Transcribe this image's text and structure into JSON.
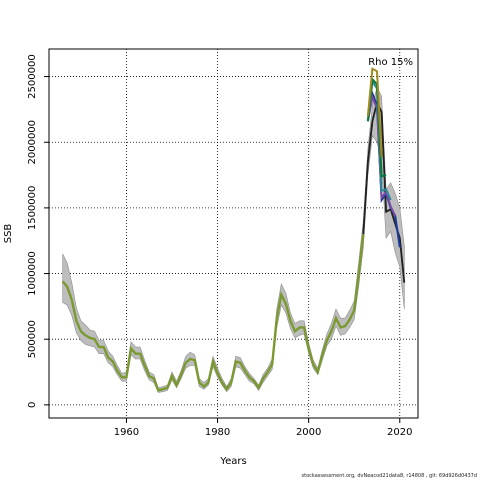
{
  "chart_data": {
    "type": "line",
    "xlabel": "Years",
    "ylabel": "SSB",
    "annotation": "Rho 15%",
    "xlim": [
      1943,
      2024
    ],
    "ylim": [
      -100000,
      2710000
    ],
    "x_ticks": [
      1960,
      1980,
      2000,
      2020
    ],
    "y_ticks": [
      0,
      500000,
      1000000,
      1500000,
      2000000,
      2500000
    ],
    "grid": true,
    "grid_style": "dotted",
    "colors": {
      "band": "#bdbdbd",
      "band_edge": "#8c8c8c",
      "base": "#222222",
      "peels": [
        "#1a3a9c",
        "#7a4aa6",
        "#2a8a9a",
        "#0a7a3a",
        "#a08a20"
      ],
      "history": "#7a9a30"
    },
    "series": [
      {
        "role": "base",
        "x": [
          1946,
          1947,
          1948,
          1949,
          1950,
          1951,
          1952,
          1953,
          1954,
          1955,
          1956,
          1957,
          1958,
          1959,
          1960,
          1961,
          1962,
          1963,
          1964,
          1965,
          1966,
          1967,
          1968,
          1969,
          1970,
          1971,
          1972,
          1973,
          1974,
          1975,
          1976,
          1977,
          1978,
          1979,
          1980,
          1981,
          1982,
          1983,
          1984,
          1985,
          1986,
          1987,
          1988,
          1989,
          1990,
          1991,
          1992,
          1993,
          1994,
          1995,
          1996,
          1997,
          1998,
          1999,
          2000,
          2001,
          2002,
          2003,
          2004,
          2005,
          2006,
          2007,
          2008,
          2009,
          2010,
          2011,
          2012,
          2013,
          2014,
          2015,
          2016,
          2017,
          2018,
          2019,
          2020,
          2021
        ],
        "y": [
          940000,
          900000,
          800000,
          640000,
          560000,
          530000,
          510000,
          500000,
          440000,
          440000,
          360000,
          330000,
          260000,
          210000,
          210000,
          430000,
          390000,
          390000,
          300000,
          220000,
          200000,
          110000,
          120000,
          130000,
          220000,
          150000,
          230000,
          320000,
          350000,
          340000,
          170000,
          140000,
          170000,
          330000,
          240000,
          170000,
          120000,
          170000,
          330000,
          320000,
          260000,
          210000,
          180000,
          130000,
          200000,
          250000,
          310000,
          660000,
          840000,
          770000,
          640000,
          560000,
          590000,
          590000,
          430000,
          310000,
          250000,
          380000,
          490000,
          560000,
          660000,
          590000,
          600000,
          650000,
          720000,
          1000000,
          1300000,
          1850000,
          2160000,
          2300000,
          2230000,
          1470000,
          1490000,
          1380000,
          1270000,
          930000
        ]
      },
      {
        "role": "peel",
        "x": [
          2013,
          2014,
          2015,
          2016,
          2017,
          2018,
          2019,
          2020
        ],
        "y": [
          2160000,
          2370000,
          2280000,
          1560000,
          1610000,
          1500000,
          1440000,
          1200000
        ]
      },
      {
        "role": "peel",
        "x": [
          2013,
          2014,
          2015,
          2016,
          2017,
          2018,
          2019
        ],
        "y": [
          2160000,
          2340000,
          2260000,
          1580000,
          1620000,
          1510000,
          1440000
        ]
      },
      {
        "role": "peel",
        "x": [
          2013,
          2014,
          2015,
          2016,
          2017,
          2018
        ],
        "y": [
          2160000,
          2460000,
          2410000,
          1630000,
          1640000,
          1560000
        ]
      },
      {
        "role": "peel",
        "x": [
          2013,
          2014,
          2015,
          2016,
          2017
        ],
        "y": [
          2160000,
          2480000,
          2440000,
          1740000,
          1750000
        ]
      },
      {
        "role": "peel",
        "x": [
          2013,
          2014,
          2015,
          2016
        ],
        "y": [
          2200000,
          2560000,
          2540000,
          1890000
        ]
      }
    ],
    "band": {
      "x": [
        1946,
        1947,
        1948,
        1949,
        1950,
        1951,
        1952,
        1953,
        1954,
        1955,
        1956,
        1957,
        1958,
        1959,
        1960,
        1961,
        1962,
        1963,
        1964,
        1965,
        1966,
        1967,
        1968,
        1969,
        1970,
        1971,
        1972,
        1973,
        1974,
        1975,
        1976,
        1977,
        1978,
        1979,
        1980,
        1981,
        1982,
        1983,
        1984,
        1985,
        1986,
        1987,
        1988,
        1989,
        1990,
        1991,
        1992,
        1993,
        1994,
        1995,
        1996,
        1997,
        1998,
        1999,
        2000,
        2001,
        2002,
        2003,
        2004,
        2005,
        2006,
        2007,
        2008,
        2009,
        2010,
        2011,
        2012,
        2013,
        2014,
        2015,
        2016,
        2017,
        2018,
        2019,
        2020,
        2021
      ],
      "upper": [
        1150000,
        1080000,
        930000,
        740000,
        640000,
        610000,
        570000,
        560000,
        490000,
        490000,
        410000,
        370000,
        300000,
        240000,
        250000,
        480000,
        440000,
        440000,
        340000,
        250000,
        230000,
        130000,
        140000,
        150000,
        250000,
        180000,
        260000,
        370000,
        400000,
        380000,
        200000,
        170000,
        200000,
        370000,
        280000,
        200000,
        140000,
        200000,
        370000,
        360000,
        290000,
        240000,
        200000,
        150000,
        230000,
        280000,
        350000,
        730000,
        920000,
        850000,
        700000,
        620000,
        640000,
        640000,
        470000,
        340000,
        280000,
        420000,
        540000,
        620000,
        730000,
        660000,
        660000,
        720000,
        790000,
        1090000,
        1400000,
        1950000,
        2280000,
        2420000,
        2350000,
        1640000,
        1690000,
        1610000,
        1500000,
        1210000
      ],
      "lower": [
        780000,
        760000,
        680000,
        550000,
        490000,
        460000,
        450000,
        440000,
        390000,
        390000,
        320000,
        290000,
        230000,
        180000,
        180000,
        380000,
        350000,
        350000,
        260000,
        190000,
        170000,
        95000,
        100000,
        110000,
        190000,
        130000,
        200000,
        280000,
        300000,
        300000,
        140000,
        120000,
        150000,
        290000,
        210000,
        150000,
        100000,
        140000,
        290000,
        280000,
        230000,
        180000,
        160000,
        110000,
        170000,
        220000,
        270000,
        590000,
        760000,
        700000,
        580000,
        510000,
        530000,
        540000,
        390000,
        280000,
        230000,
        340000,
        450000,
        500000,
        600000,
        530000,
        540000,
        590000,
        650000,
        910000,
        1200000,
        1750000,
        2050000,
        2000000,
        1850000,
        1270000,
        1320000,
        1160000,
        1050000,
        730000
      ]
    }
  },
  "footer": {
    "text": "stockassessment.org, dvNeacod21data8, r14808 , git: 69d926d0437d"
  }
}
